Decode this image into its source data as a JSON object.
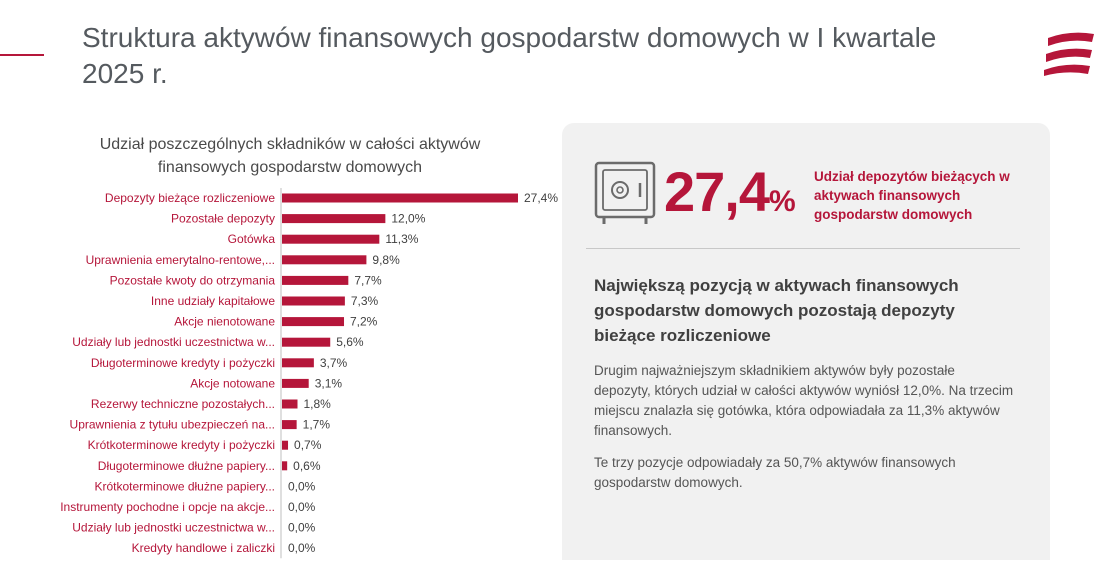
{
  "page": {
    "title": "Struktura aktywów finansowych gospodarstw domowych w I kwartale 2025 r."
  },
  "colors": {
    "accent": "#b5163a",
    "text": "#555a5f",
    "panel": "#f1f1f1"
  },
  "chart_data": {
    "type": "bar",
    "orientation": "horizontal",
    "title": "Udział poszczególnych składników w całości aktywów finansowych gospodarstw domowych",
    "categories": [
      "Depozyty bieżące rozliczeniowe",
      "Pozostałe depozyty",
      "Gotówka",
      "Uprawnienia emerytalno-rentowe,...",
      "Pozostałe kwoty do otrzymania",
      "Inne udziały kapitałowe",
      "Akcje nienotowane",
      "Udziały lub jednostki uczestnictwa w...",
      "Długoterminowe kredyty i pożyczki",
      "Akcje notowane",
      "Rezerwy techniczne pozostałych...",
      "Uprawnienia z tytułu ubezpieczeń na...",
      "Krótkoterminowe kredyty i pożyczki",
      "Długoterminowe dłużne papiery...",
      "Krótkoterminowe dłużne papiery...",
      "Instrumenty pochodne i opcje na akcje...",
      "Udziały lub jednostki uczestnictwa w...",
      "Kredyty handlowe i zaliczki"
    ],
    "values": [
      27.4,
      12.0,
      11.3,
      9.8,
      7.7,
      7.3,
      7.2,
      5.6,
      3.7,
      3.1,
      1.8,
      1.7,
      0.7,
      0.6,
      0.0,
      0.0,
      0.0,
      0.0
    ],
    "value_labels": [
      "27,4%",
      "12,0%",
      "11,3%",
      "9,8%",
      "7,7%",
      "7,3%",
      "7,2%",
      "5,6%",
      "3,7%",
      "3,1%",
      "1,8%",
      "1,7%",
      "0,7%",
      "0,6%",
      "0,0%",
      "0,0%",
      "0,0%",
      "0,0%"
    ],
    "xlim": [
      0,
      27.4
    ],
    "grid": false,
    "legend": "none"
  },
  "highlight": {
    "number": "27,4",
    "unit": "%",
    "label": "Udział depozytów bieżących w aktywach finansowych gospodarstw domowych",
    "icon": "safe-icon"
  },
  "summary": {
    "headline": "Największą pozycją w aktywach finansowych gospodarstw domowych pozostają depozyty bieżące rozliczeniowe",
    "paragraph1": "Drugim najważniejszym składnikiem aktywów były pozostałe depozyty, których udział w całości aktywów wyniósł 12,0%. Na trzecim miejscu znalazła się gotówka, która odpowiadała za 11,3% aktywów finansowych.",
    "paragraph2": "Te trzy pozycje odpowiadały za 50,7% aktywów finansowych gospodarstw domowych."
  }
}
